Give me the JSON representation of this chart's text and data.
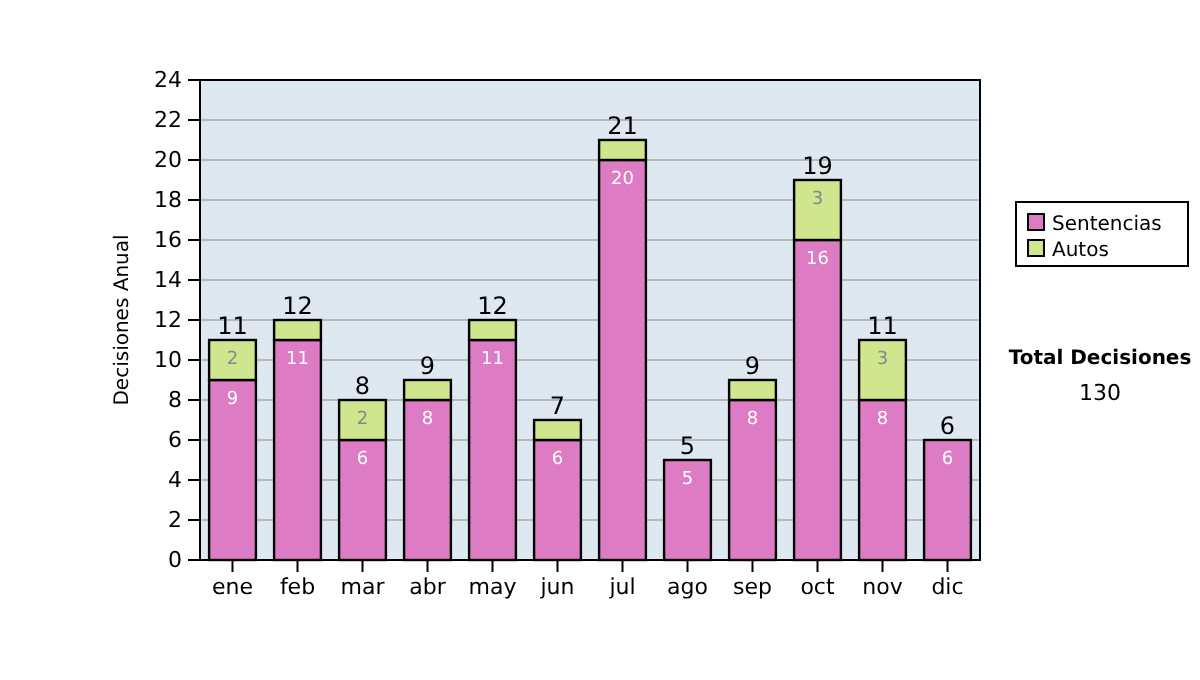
{
  "chart_data": {
    "type": "bar",
    "stacked": true,
    "ylabel": "Decisiones Anual",
    "categories": [
      "ene",
      "feb",
      "mar",
      "abr",
      "may",
      "jun",
      "jul",
      "ago",
      "sep",
      "oct",
      "nov",
      "dic"
    ],
    "series": [
      {
        "name": "Sentencias",
        "color": "#dd7cc4",
        "values": [
          9,
          11,
          6,
          8,
          11,
          6,
          20,
          5,
          8,
          16,
          8,
          6
        ],
        "value_labels": [
          "9",
          "11",
          "6",
          "8",
          "11",
          "6",
          "20",
          "5",
          "8",
          "16",
          "8",
          "6"
        ]
      },
      {
        "name": "Autos",
        "color": "#cfe68f",
        "values": [
          2,
          1,
          2,
          1,
          1,
          1,
          1,
          0,
          1,
          3,
          3,
          0
        ],
        "value_labels": [
          "2",
          null,
          "2",
          null,
          null,
          null,
          null,
          null,
          null,
          "3",
          "3",
          null
        ]
      }
    ],
    "totals": [
      "11",
      "12",
      "8",
      "9",
      "12",
      "7",
      "21",
      "5",
      "9",
      "19",
      "11",
      "6"
    ],
    "ylim": [
      0,
      24
    ],
    "yticks": [
      0,
      2,
      4,
      6,
      8,
      10,
      12,
      14,
      16,
      18,
      20,
      22,
      24
    ],
    "grid": "y",
    "legend": "right",
    "annotations": [
      "Total Decisiones",
      "130"
    ]
  }
}
